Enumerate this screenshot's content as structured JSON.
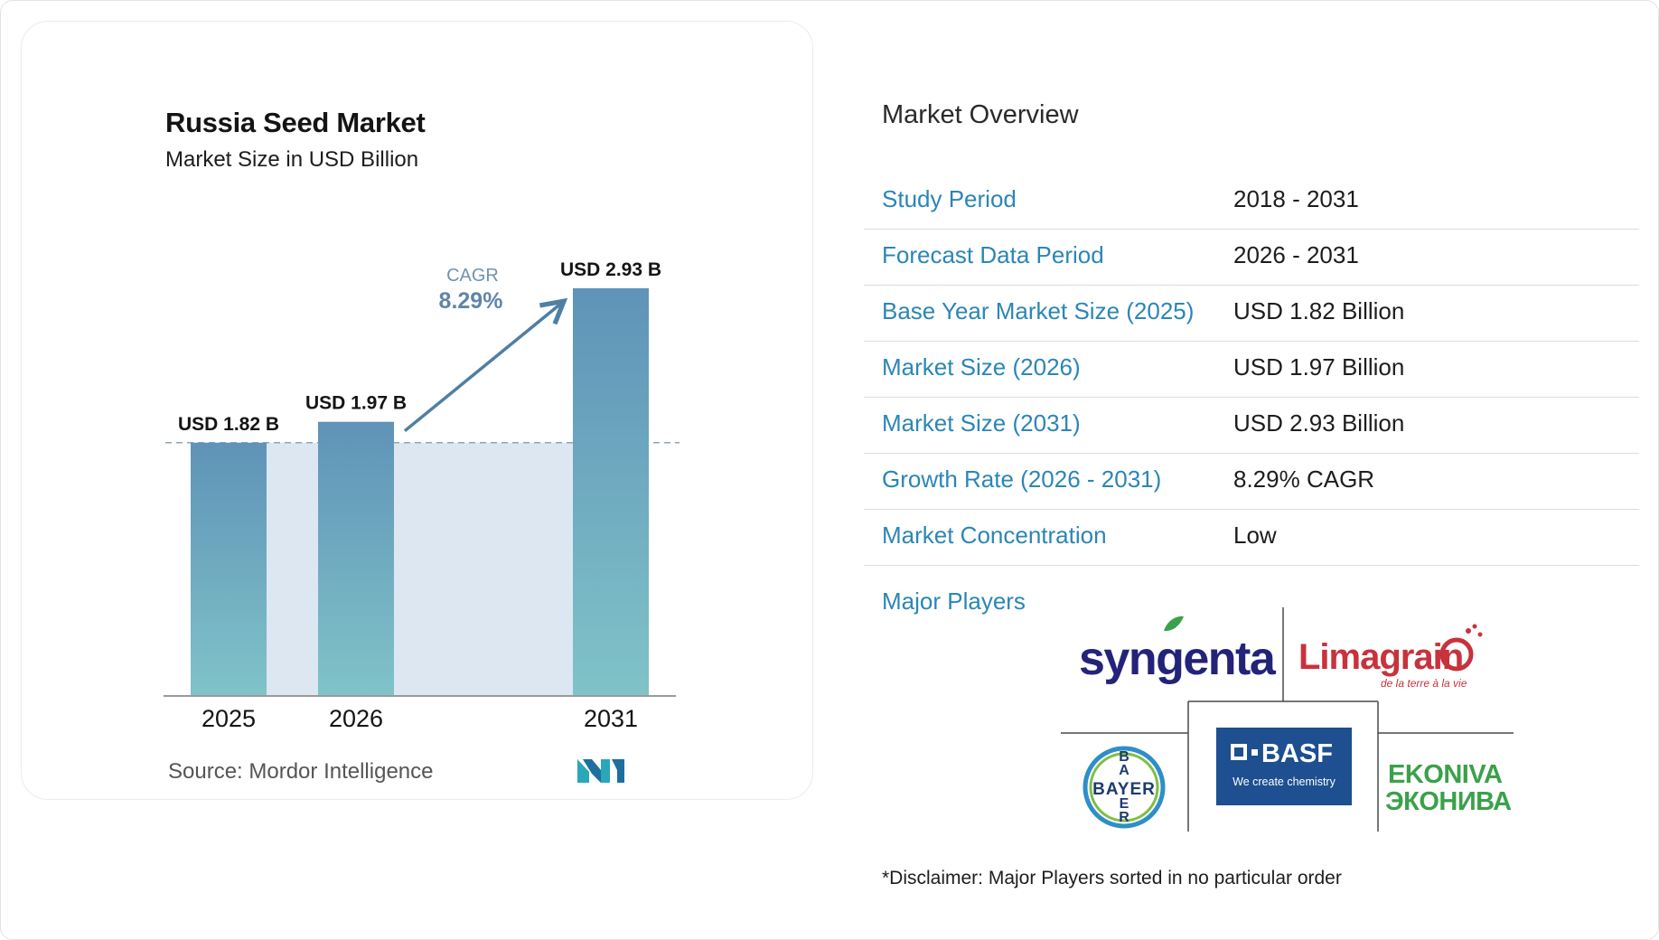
{
  "chart_data": {
    "type": "bar",
    "title": "Russia Seed Market",
    "subtitle": "Market Size in USD Billion",
    "categories": [
      "2025",
      "2026",
      "2031"
    ],
    "values": [
      1.82,
      1.97,
      2.93
    ],
    "value_labels": [
      "USD 1.82 B",
      "USD 1.97 B",
      "USD 2.93 B"
    ],
    "ylim": [
      0,
      3.15
    ],
    "grid": false,
    "annotation": {
      "label": "CAGR",
      "value": "8.29%"
    },
    "bar_color_top": "#5f93b8",
    "bar_color_bottom": "#80c3c8",
    "band_color": "#dde7f1",
    "accent": "#4e7fa5"
  },
  "source": "Source:  Mordor Intelligence",
  "overview": {
    "title": "Market Overview",
    "rows": [
      {
        "label": "Study Period",
        "value": "2018 - 2031"
      },
      {
        "label": "Forecast Data Period",
        "value": "2026 - 2031"
      },
      {
        "label": "Base Year Market Size (2025)",
        "value": "USD 1.82 Billion"
      },
      {
        "label": "Market Size (2026)",
        "value": "USD 1.97 Billion"
      },
      {
        "label": "Market Size (2031)",
        "value": "USD 2.93 Billion"
      },
      {
        "label": "Growth Rate (2026 - 2031)",
        "value": "8.29% CAGR"
      },
      {
        "label": "Market Concentration",
        "value": "Low"
      }
    ],
    "players_label": "Major Players",
    "players": [
      {
        "name": "syngenta",
        "color": "#23237a"
      },
      {
        "name": "Limagrain",
        "tagline": "de la terre à la vie",
        "color": "#c8323c"
      },
      {
        "name": "BAYER",
        "color": "#2d8fc8"
      },
      {
        "name": "BASF",
        "tagline": "We create chemistry",
        "color": "#1d4f91"
      },
      {
        "name": "EKONIVA",
        "name2": "ЭКОНИВА",
        "color": "#3aa14a"
      }
    ],
    "disclaimer": "*Disclaimer: Major Players sorted in no particular order"
  }
}
